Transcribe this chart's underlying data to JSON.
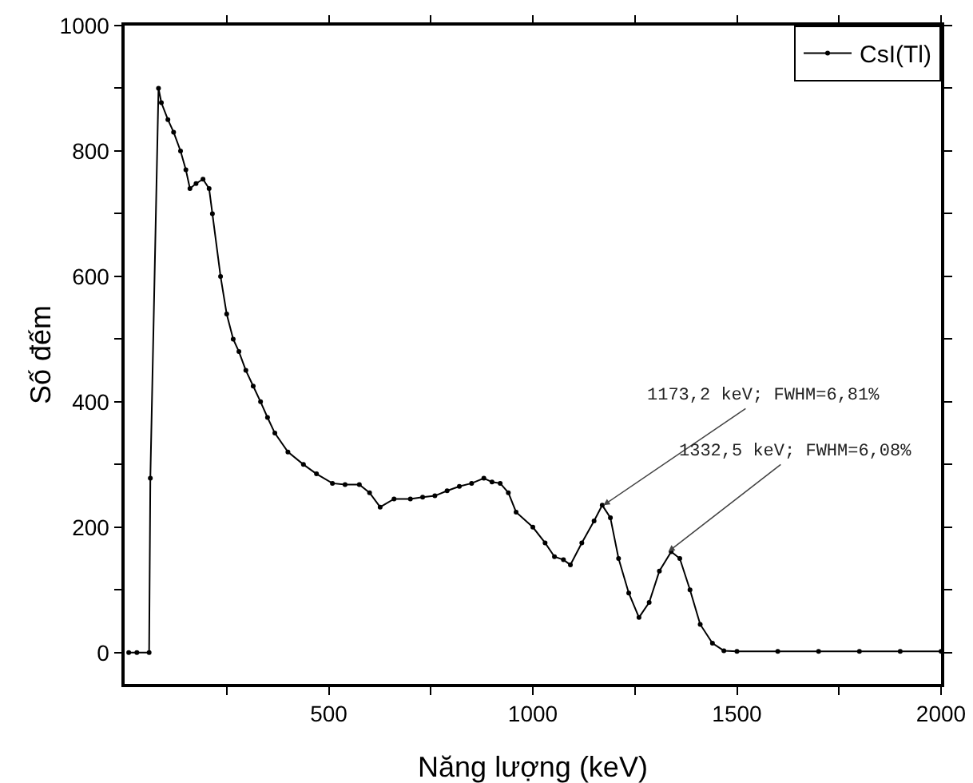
{
  "chart_data": {
    "type": "line",
    "xlabel": "Năng lượng (keV)",
    "ylabel": "Số đếm",
    "xlim": [
      0,
      2000
    ],
    "xticks": [
      {
        "value": 250,
        "label": null
      },
      500,
      {
        "value": 750,
        "label": null
      },
      1000,
      {
        "value": 1250,
        "label": null
      },
      1500,
      {
        "value": 1750,
        "label": null
      },
      2000
    ],
    "ylim": [
      -50,
      1000
    ],
    "yticks": [
      0,
      {
        "value": 100,
        "label": null
      },
      200,
      {
        "value": 300,
        "label": null
      },
      400,
      {
        "value": 500,
        "label": null
      },
      600,
      {
        "value": 700,
        "label": null
      },
      800,
      {
        "value": 900,
        "label": null
      },
      1000
    ],
    "grid": false,
    "legend": "top right",
    "marker": "circle",
    "line_style": "solid",
    "series": [
      {
        "name": "CsI(Tl)",
        "color": "#000000",
        "x": [
          10,
          30,
          60,
          63,
          83,
          90,
          106,
          120,
          137,
          150,
          160,
          175,
          192,
          207,
          215,
          235,
          250,
          266,
          280,
          297,
          315,
          333,
          350,
          368,
          400,
          438,
          470,
          509,
          540,
          575,
          600,
          626,
          660,
          700,
          730,
          760,
          790,
          820,
          850,
          880,
          900,
          920,
          940,
          959,
          1000,
          1030,
          1053,
          1075,
          1092,
          1120,
          1150,
          1170,
          1190,
          1210,
          1235,
          1260,
          1285,
          1310,
          1339,
          1360,
          1385,
          1410,
          1440,
          1468,
          1500,
          1600,
          1700,
          1800,
          1900,
          2000
        ],
        "values": [
          0,
          0,
          0,
          278,
          900,
          877,
          850,
          830,
          800,
          770,
          740,
          748,
          755,
          740,
          700,
          600,
          540,
          500,
          480,
          450,
          425,
          400,
          375,
          350,
          320,
          300,
          285,
          270,
          268,
          268,
          255,
          232,
          245,
          245,
          248,
          250,
          258,
          265,
          270,
          278,
          272,
          270,
          255,
          224,
          200,
          175,
          153,
          148,
          140,
          175,
          210,
          235,
          215,
          150,
          95,
          56,
          80,
          130,
          161,
          150,
          100,
          45,
          15,
          3,
          2,
          2,
          2,
          2,
          2,
          2
        ]
      }
    ],
    "annotations": [
      {
        "text": "1173,2 keV; FWHM=6,81%",
        "x": 1173,
        "y": 235
      },
      {
        "text": "1332,5 keV; FWHM=6,08%",
        "x": 1332,
        "y": 161
      }
    ]
  }
}
